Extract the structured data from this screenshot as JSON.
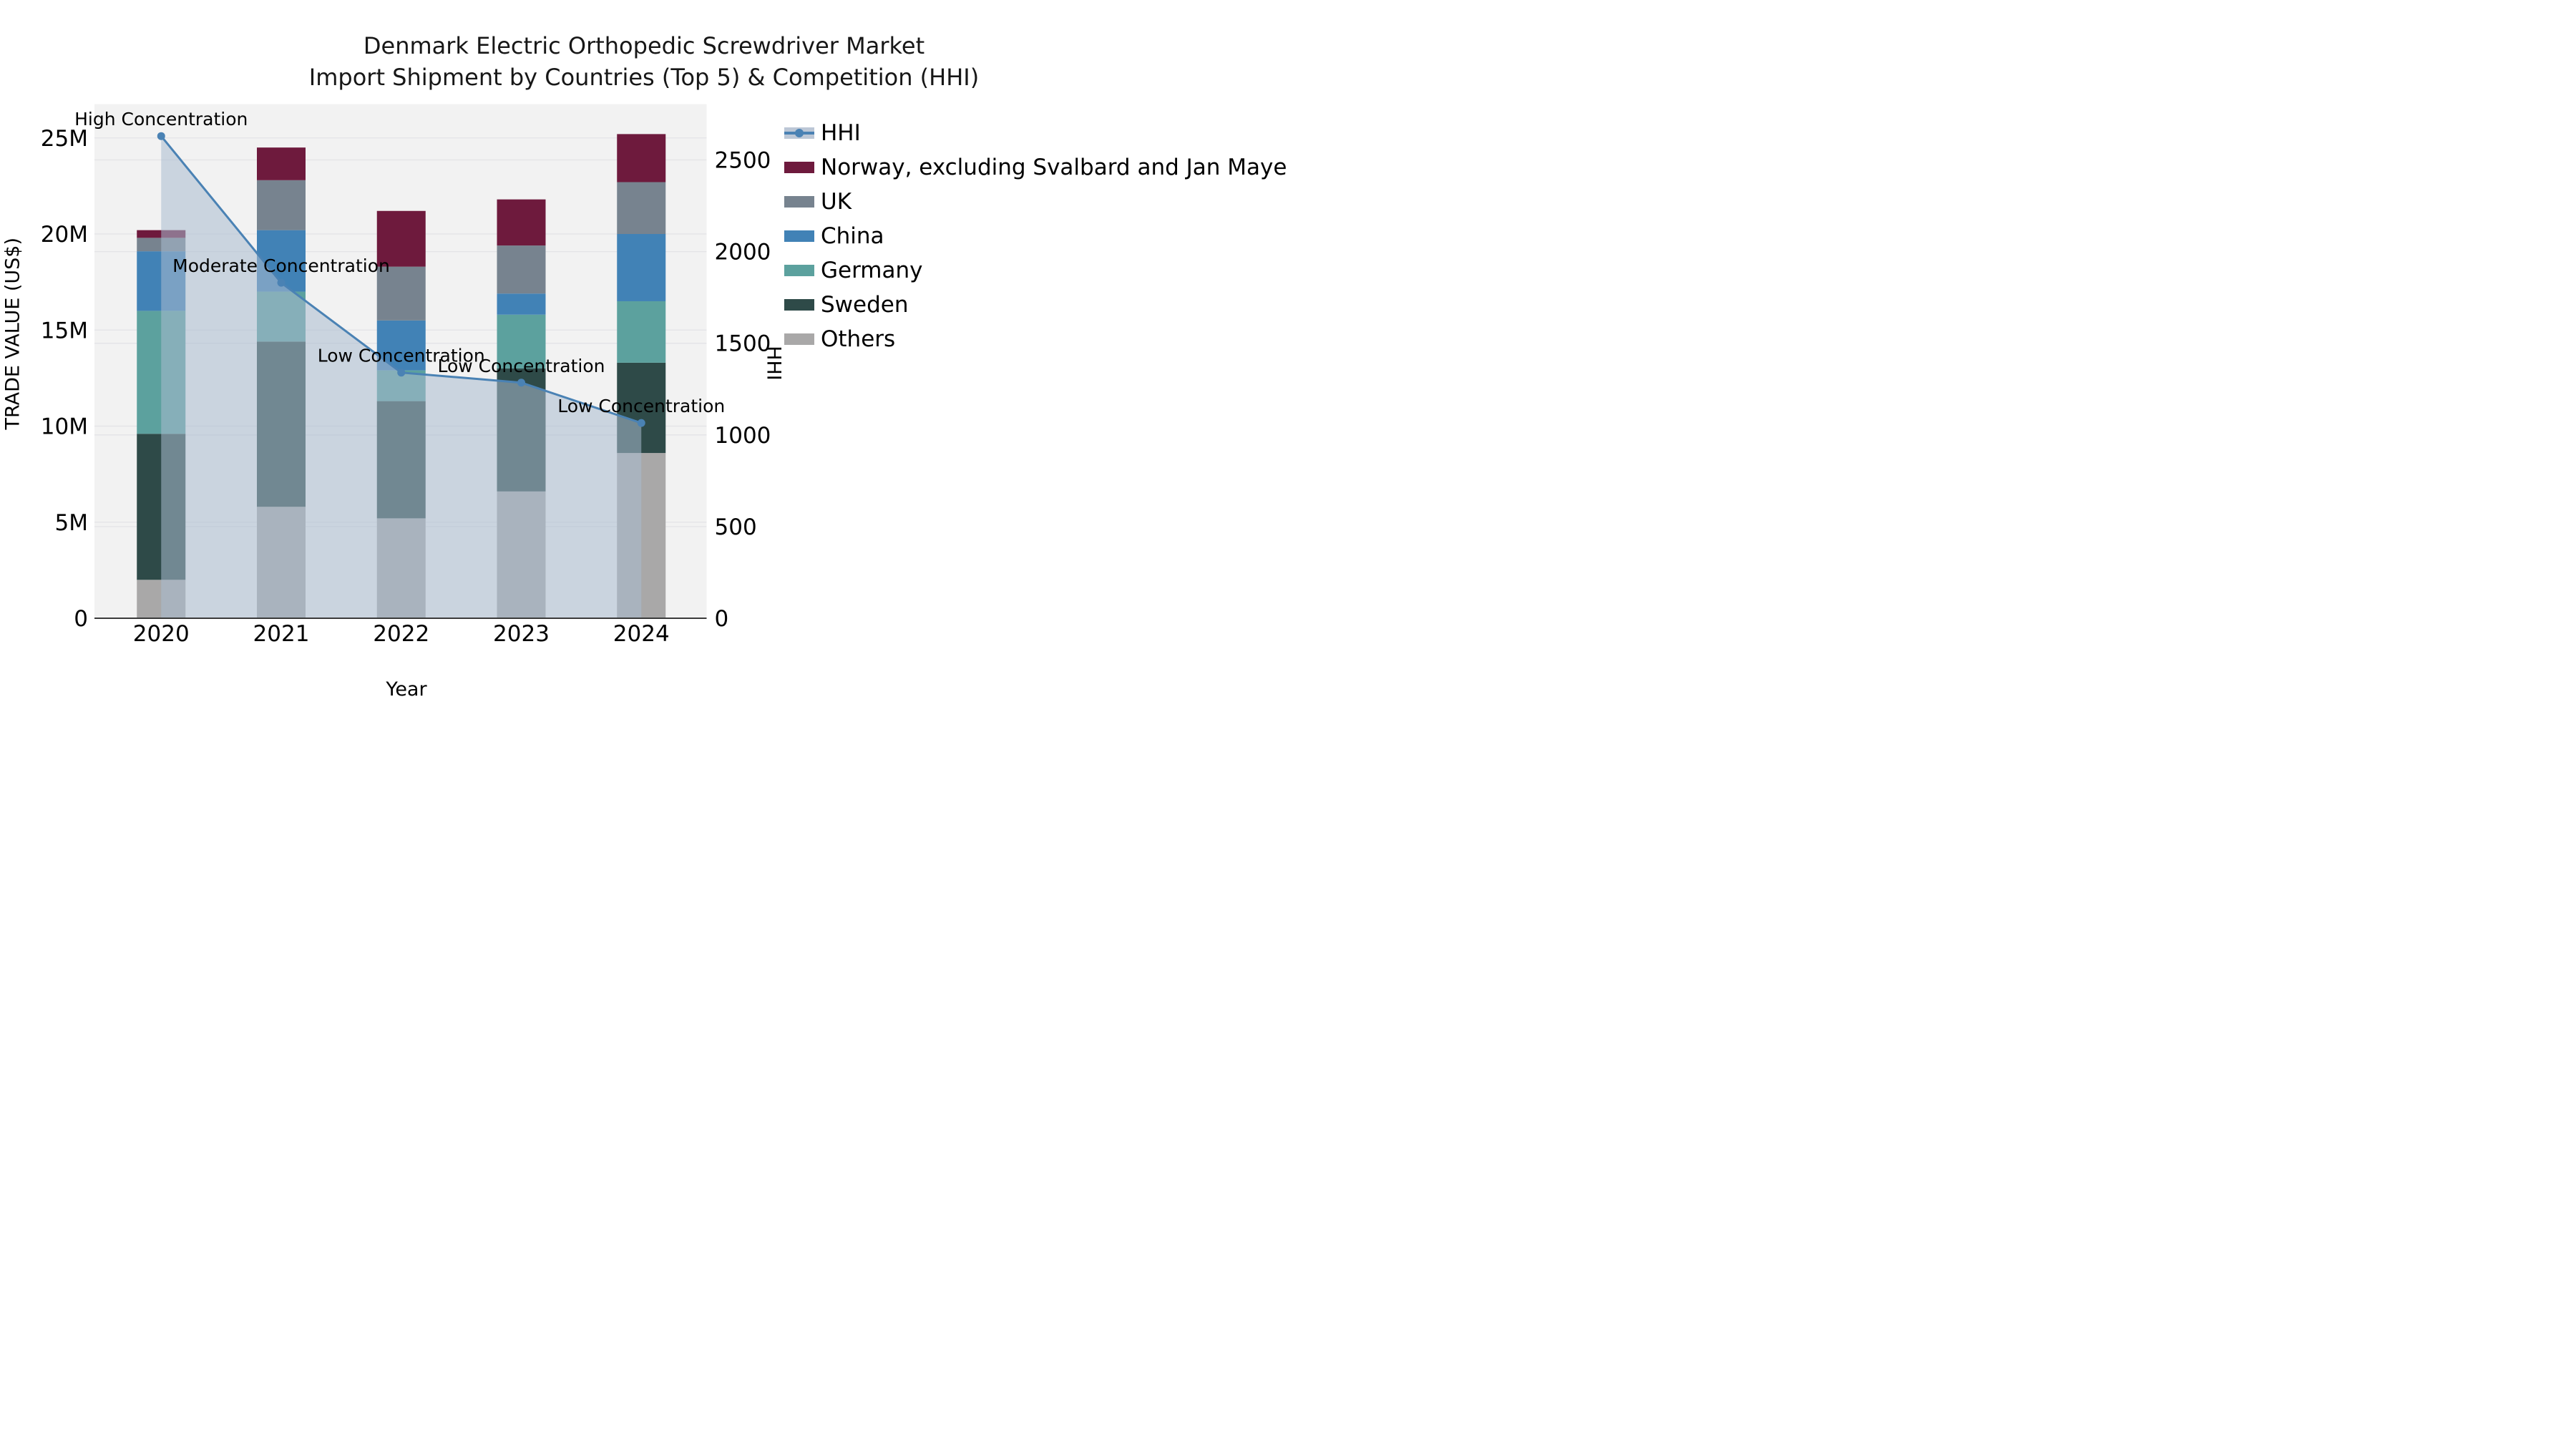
{
  "title": {
    "line1": "Denmark Electric Orthopedic Screwdriver Market",
    "line2": "Import Shipment by Countries (Top 5) & Competition (HHI)"
  },
  "colors": {
    "plot_background": "#F2F2F2",
    "figure_background": "#FFFFFF",
    "gridline": "#E3E3E6",
    "axis_line": "#3A3A3A",
    "hhi_line": "#4A82B4",
    "hhi_area_fill": "rgba(170,187,207,0.55)",
    "hhi_legend_band": "#BCC7D6"
  },
  "legend": {
    "items": [
      {
        "label": "HHI",
        "type": "line",
        "color": "#4A82B4"
      },
      {
        "label": "Norway, excluding Svalbard and Jan Mayen",
        "type": "patch",
        "color": "#6E1A3D"
      },
      {
        "label": "UK",
        "type": "patch",
        "color": "#77838F"
      },
      {
        "label": "China",
        "type": "patch",
        "color": "#4182B6"
      },
      {
        "label": "Germany",
        "type": "patch",
        "color": "#5CA19E"
      },
      {
        "label": "Sweden",
        "type": "patch",
        "color": "#2E4A48"
      },
      {
        "label": "Others",
        "type": "patch",
        "color": "#A9A8A8"
      }
    ]
  },
  "chart_data": {
    "type": "bar",
    "subtype": "stacked-bars-with-line-overlay",
    "categories": [
      "2020",
      "2021",
      "2022",
      "2023",
      "2024"
    ],
    "values_unit": "millions USD",
    "series": [
      {
        "name": "Others",
        "color": "#A9A8A8",
        "values": [
          2.0,
          5.8,
          5.2,
          6.6,
          8.6
        ]
      },
      {
        "name": "Sweden",
        "color": "#2E4A48",
        "values": [
          7.6,
          8.6,
          6.1,
          6.4,
          4.7
        ]
      },
      {
        "name": "Germany",
        "color": "#5CA19E",
        "values": [
          6.4,
          2.6,
          1.6,
          2.8,
          3.2
        ]
      },
      {
        "name": "China",
        "color": "#4182B6",
        "values": [
          3.1,
          3.2,
          2.6,
          1.1,
          3.5
        ]
      },
      {
        "name": "UK",
        "color": "#77838F",
        "values": [
          0.7,
          2.6,
          2.8,
          2.5,
          2.7
        ]
      },
      {
        "name": "Norway, excluding Svalbard and Jan Mayen",
        "color": "#6E1A3D",
        "values": [
          0.4,
          1.7,
          2.9,
          2.4,
          2.5
        ]
      }
    ],
    "line_series": {
      "name": "HHI",
      "color": "#4A82B4",
      "values": [
        2630,
        1830,
        1340,
        1285,
        1065
      ],
      "area_fill_to_zero": true
    },
    "annotations": [
      {
        "category": "2020",
        "text": "High Concentration"
      },
      {
        "category": "2021",
        "text": "Moderate Concentration"
      },
      {
        "category": "2022",
        "text": "Low Concentration"
      },
      {
        "category": "2023",
        "text": "Low Concentration"
      },
      {
        "category": "2024",
        "text": "Low Concentration"
      }
    ],
    "left_axis": {
      "label": "TRADE VALUE (US$)",
      "ticks": [
        "0",
        "5M",
        "10M",
        "15M",
        "20M",
        "25M"
      ],
      "tick_values": [
        0,
        5,
        10,
        15,
        20,
        25
      ],
      "max": 26.76
    },
    "right_axis": {
      "label": "HHI",
      "ticks": [
        "0",
        "500",
        "1000",
        "1500",
        "2000",
        "2500"
      ],
      "tick_values": [
        0,
        500,
        1000,
        1500,
        2000,
        2500
      ],
      "max": 2804
    },
    "x_axis": {
      "label": "Year"
    },
    "grid": true,
    "legend_position": "right"
  }
}
